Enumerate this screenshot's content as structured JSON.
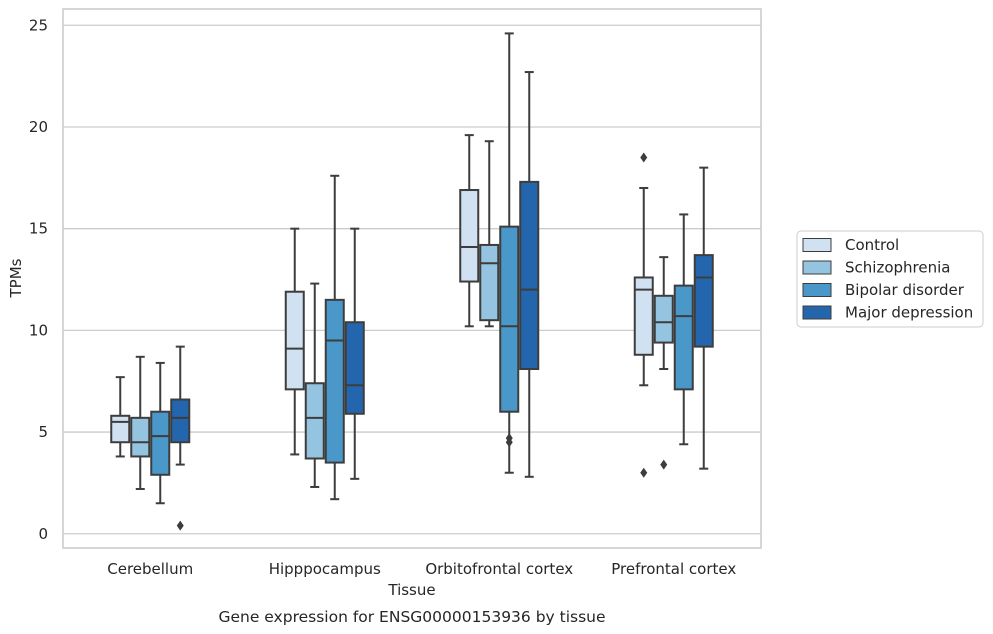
{
  "caption": "Gene expression for ENSG00000153936 by tissue",
  "chart_data": {
    "type": "box",
    "xlabel": "Tissue",
    "ylabel": "TPMs",
    "ylim": [
      -0.7,
      25.8
    ],
    "yticks": [
      0,
      5,
      10,
      15,
      20,
      25
    ],
    "grid": "horizontal",
    "legend_position": "right",
    "categories": [
      "Cerebellum",
      "Hipppocampus",
      "Orbitofrontal cortex",
      "Prefrontal cortex"
    ],
    "series": [
      {
        "name": "Control",
        "color": "#d0e1f2",
        "boxes": [
          {
            "whislo": 3.8,
            "q1": 4.5,
            "med": 5.5,
            "q3": 5.8,
            "whishi": 7.7,
            "fliers": []
          },
          {
            "whislo": 3.9,
            "q1": 7.1,
            "med": 9.1,
            "q3": 11.9,
            "whishi": 15.0,
            "fliers": []
          },
          {
            "whislo": 10.2,
            "q1": 12.4,
            "med": 14.1,
            "q3": 16.9,
            "whishi": 19.6,
            "fliers": []
          },
          {
            "whislo": 7.3,
            "q1": 8.8,
            "med": 12.0,
            "q3": 12.6,
            "whishi": 17.0,
            "fliers": [
              18.5,
              3.0
            ]
          }
        ]
      },
      {
        "name": "Schizophrenia",
        "color": "#94c4df",
        "boxes": [
          {
            "whislo": 2.2,
            "q1": 3.8,
            "med": 4.5,
            "q3": 5.7,
            "whishi": 8.7,
            "fliers": []
          },
          {
            "whislo": 2.3,
            "q1": 3.7,
            "med": 5.7,
            "q3": 7.4,
            "whishi": 12.3,
            "fliers": []
          },
          {
            "whislo": 10.2,
            "q1": 10.5,
            "med": 13.3,
            "q3": 14.2,
            "whishi": 19.3,
            "fliers": []
          },
          {
            "whislo": 8.1,
            "q1": 9.4,
            "med": 10.4,
            "q3": 11.7,
            "whishi": 13.6,
            "fliers": [
              3.4
            ]
          }
        ]
      },
      {
        "name": "Bipolar disorder",
        "color": "#4a98c9",
        "boxes": [
          {
            "whislo": 1.5,
            "q1": 2.9,
            "med": 4.8,
            "q3": 6.0,
            "whishi": 8.4,
            "fliers": []
          },
          {
            "whislo": 1.7,
            "q1": 3.5,
            "med": 9.5,
            "q3": 11.5,
            "whishi": 17.6,
            "fliers": []
          },
          {
            "whislo": 3.0,
            "q1": 6.0,
            "med": 10.2,
            "q3": 15.1,
            "whishi": 24.6,
            "fliers": [
              4.7,
              4.5
            ]
          },
          {
            "whislo": 4.4,
            "q1": 7.1,
            "med": 10.7,
            "q3": 12.2,
            "whishi": 15.7,
            "fliers": []
          }
        ]
      },
      {
        "name": "Major depression",
        "color": "#2366ad",
        "boxes": [
          {
            "whislo": 3.4,
            "q1": 4.5,
            "med": 5.7,
            "q3": 6.6,
            "whishi": 9.2,
            "fliers": [
              0.4
            ]
          },
          {
            "whislo": 2.7,
            "q1": 5.9,
            "med": 7.3,
            "q3": 10.4,
            "whishi": 15.0,
            "fliers": []
          },
          {
            "whislo": 2.8,
            "q1": 8.1,
            "med": 12.0,
            "q3": 17.3,
            "whishi": 22.7,
            "fliers": []
          },
          {
            "whislo": 3.2,
            "q1": 9.2,
            "med": 12.6,
            "q3": 13.7,
            "whishi": 18.0,
            "fliers": []
          }
        ]
      }
    ]
  }
}
